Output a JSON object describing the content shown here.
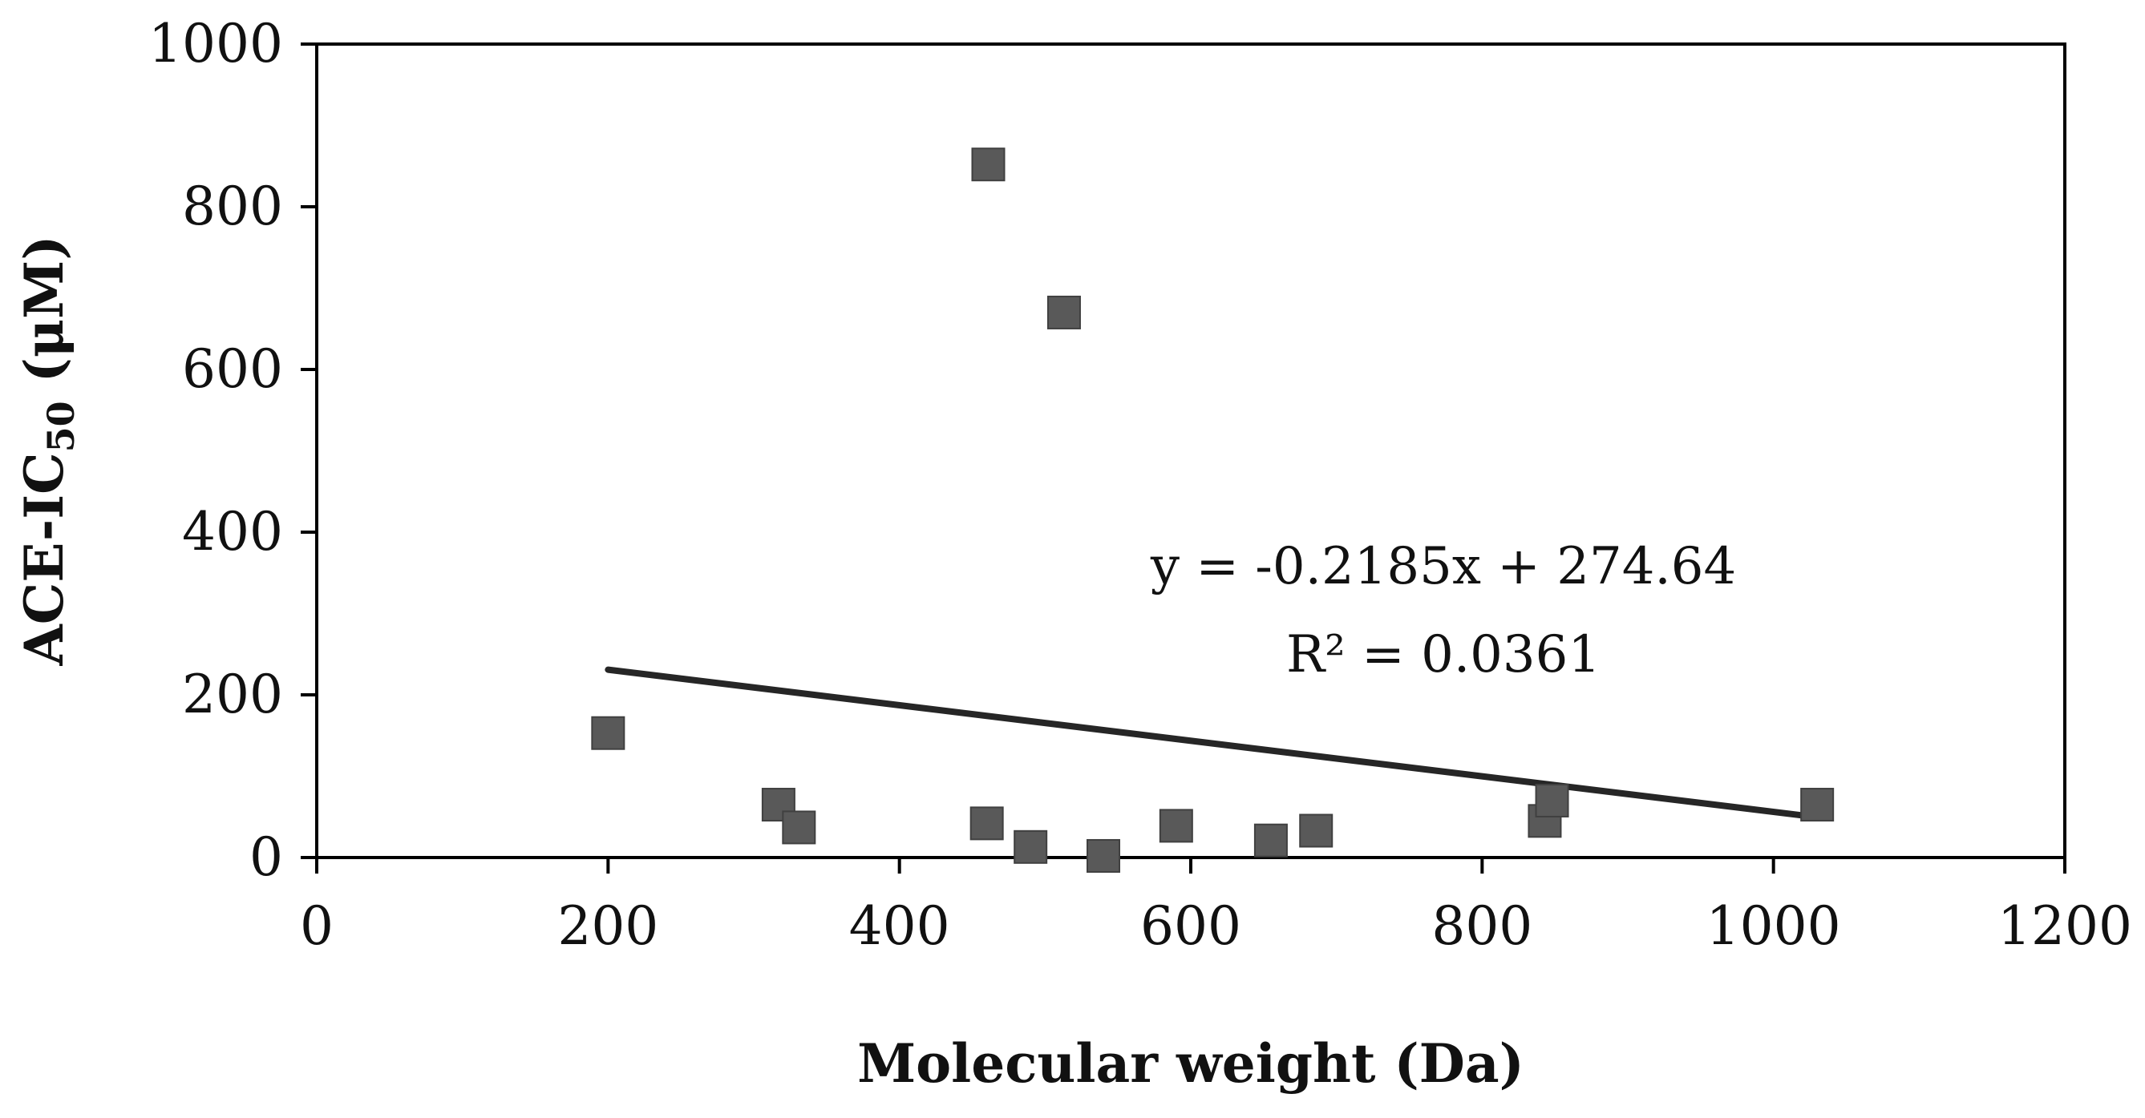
{
  "chart_data": {
    "type": "scatter",
    "title": "",
    "xlabel": "Molecular weight (Da)",
    "ylabel": {
      "prefix": "ACE-IC",
      "subscript": "50",
      "suffix": " (μM)"
    },
    "xlim": [
      0,
      1200
    ],
    "ylim": [
      0,
      1000
    ],
    "xticks": [
      0,
      200,
      400,
      600,
      800,
      1000,
      1200
    ],
    "yticks": [
      0,
      200,
      400,
      600,
      800,
      1000
    ],
    "grid": false,
    "series": [
      {
        "name": "ACE-IC50",
        "marker": "square",
        "color": "#595959",
        "points": [
          {
            "x": 200,
            "y": 153
          },
          {
            "x": 317,
            "y": 65
          },
          {
            "x": 331,
            "y": 37
          },
          {
            "x": 460,
            "y": 42
          },
          {
            "x": 461,
            "y": 852
          },
          {
            "x": 490,
            "y": 13
          },
          {
            "x": 513,
            "y": 670
          },
          {
            "x": 540,
            "y": 2
          },
          {
            "x": 590,
            "y": 39
          },
          {
            "x": 655,
            "y": 21
          },
          {
            "x": 686,
            "y": 33
          },
          {
            "x": 843,
            "y": 45
          },
          {
            "x": 848,
            "y": 70
          },
          {
            "x": 1030,
            "y": 65
          }
        ]
      }
    ],
    "trendline": {
      "slope": -0.2185,
      "intercept": 274.64,
      "x_range": [
        200,
        1030
      ],
      "color": "#262626",
      "equation": "y = -0.2185x + 274.64",
      "r_squared": "R² = 0.0361"
    }
  }
}
